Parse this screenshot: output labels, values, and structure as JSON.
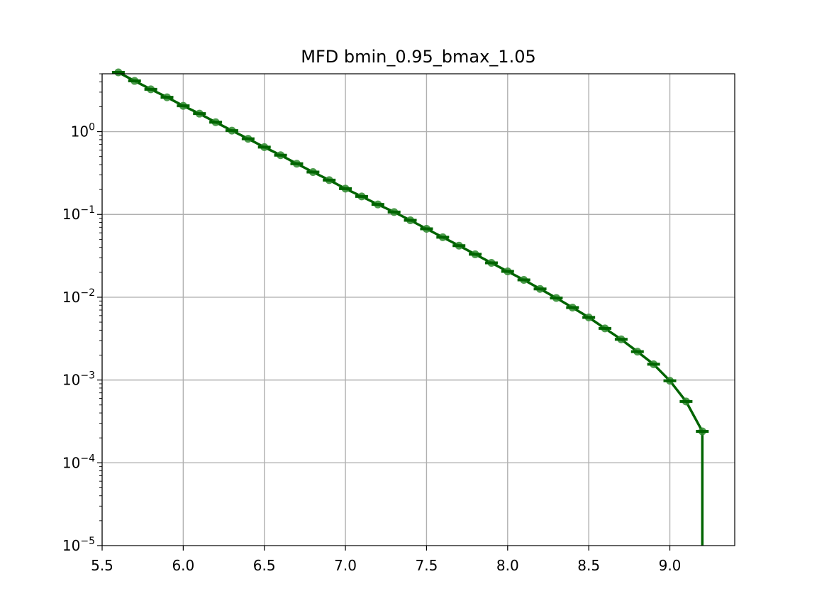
{
  "chart_data": {
    "type": "line",
    "title": "MFD bmin_0.95_bmax_1.05",
    "xlabel": "",
    "ylabel": "",
    "xlim": [
      5.5,
      9.4
    ],
    "ylim": [
      1e-05,
      5
    ],
    "yscale": "log",
    "grid": true,
    "x_ticks": [
      "5.5",
      "6.0",
      "6.5",
      "7.0",
      "7.5",
      "8.0",
      "8.5",
      "9.0"
    ],
    "y_ticks": [
      {
        "base": "10",
        "exp": "0"
      },
      {
        "base": "10",
        "exp": "−1"
      },
      {
        "base": "10",
        "exp": "−2"
      },
      {
        "base": "10",
        "exp": "−3"
      },
      {
        "base": "10",
        "exp": "−4"
      },
      {
        "base": "10",
        "exp": "−5"
      }
    ],
    "colors": {
      "line": "#006400",
      "markers": "#2e8b2e",
      "grid": "#b0b0b0"
    },
    "series": [
      {
        "x": [
          5.6,
          5.7,
          5.8,
          5.9,
          6.0,
          6.1,
          6.2,
          6.3,
          6.4,
          6.5,
          6.6,
          6.7,
          6.8,
          6.9,
          7.0,
          7.1,
          7.2,
          7.3,
          7.4,
          7.5,
          7.6,
          7.7,
          7.8,
          7.9,
          8.0,
          8.1,
          8.2,
          8.3,
          8.4,
          8.5,
          8.6,
          8.7,
          8.8,
          8.9,
          9.0,
          9.1,
          9.2,
          9.2
        ],
        "y": [
          5.2,
          4.1,
          3.25,
          2.6,
          2.05,
          1.65,
          1.3,
          1.03,
          0.82,
          0.65,
          0.52,
          0.41,
          0.325,
          0.26,
          0.205,
          0.165,
          0.132,
          0.107,
          0.085,
          0.067,
          0.053,
          0.042,
          0.033,
          0.026,
          0.0205,
          0.0162,
          0.0126,
          0.0098,
          0.0075,
          0.0057,
          0.0042,
          0.0031,
          0.0022,
          0.00155,
          0.00098,
          0.00055,
          0.00024,
          1e-05
        ]
      }
    ]
  }
}
